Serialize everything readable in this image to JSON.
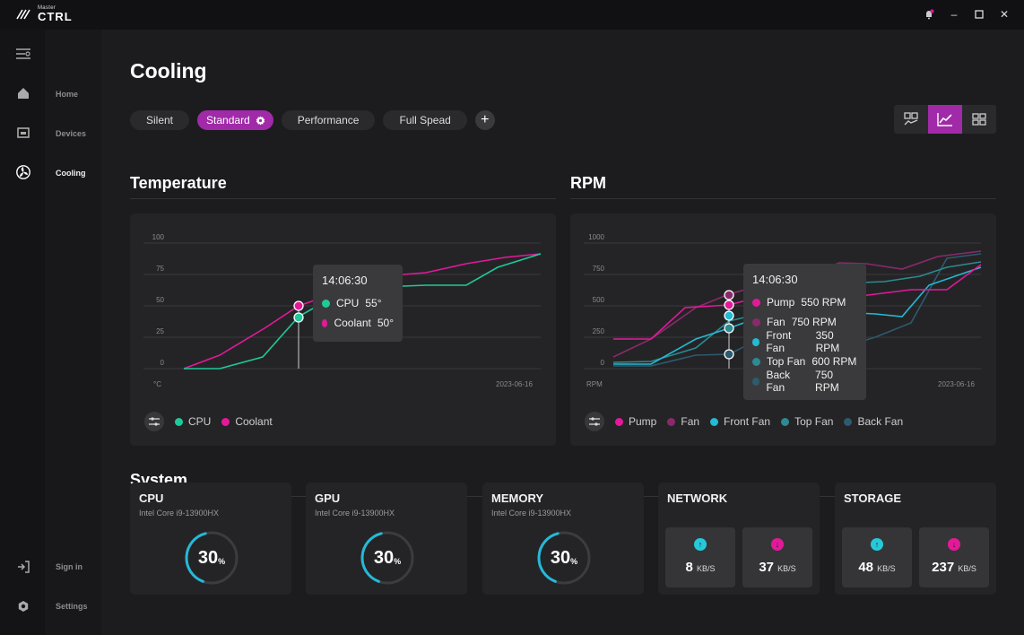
{
  "app": {
    "logo_small": "Master",
    "logo_big": "CTRL"
  },
  "nav": {
    "home": "Home",
    "devices": "Devices",
    "cooling": "Cooling",
    "signin": "Sign in",
    "settings": "Settings"
  },
  "page": {
    "title": "Cooling"
  },
  "profiles": {
    "silent": "Silent",
    "standard": "Standard",
    "performance": "Performance",
    "full_speed": "Full Spead"
  },
  "temperature": {
    "title": "Temperature",
    "unit": "°C",
    "date": "2023-06-16",
    "ticks": [
      "100",
      "75",
      "50",
      "25",
      "0"
    ],
    "tooltip": {
      "time": "14:06:30",
      "rows": [
        {
          "label": "CPU",
          "value": "55°"
        },
        {
          "label": "Coolant",
          "value": "50°"
        }
      ]
    },
    "legend": [
      "CPU",
      "Coolant"
    ]
  },
  "rpm": {
    "title": "RPM",
    "unit": "RPM",
    "date": "2023-06-16",
    "ticks": [
      "1000",
      "750",
      "500",
      "250",
      "0"
    ],
    "tooltip": {
      "time": "14:06:30",
      "rows": [
        {
          "label": "Pump",
          "value": "550 RPM"
        },
        {
          "label": "Fan",
          "value": "750 RPM"
        },
        {
          "label": "Front Fan",
          "value": "350 RPM"
        },
        {
          "label": "Top Fan",
          "value": "600 RPM"
        },
        {
          "label": "Back Fan",
          "value": "750 RPM"
        }
      ]
    },
    "legend": [
      "Pump",
      "Fan",
      "Front Fan",
      "Top Fan",
      "Back Fan"
    ]
  },
  "colors": {
    "cpu": "#1fc99a",
    "coolant": "#e3199a",
    "pump": "#e3199a",
    "fan": "#8a2a6a",
    "front_fan": "#25b9d2",
    "top_fan": "#2c8a92",
    "back_fan": "#2e5a6e",
    "accent": "#a02aa8"
  },
  "system": {
    "title": "System",
    "cpu": {
      "title": "CPU",
      "sub": "Intel Core i9-13900HX",
      "value": "30",
      "unit": "%",
      "level": 30
    },
    "gpu": {
      "title": "GPU",
      "sub": "Intel Core i9-13900HX",
      "value": "30",
      "unit": "%",
      "level": 30
    },
    "memory": {
      "title": "MEMORY",
      "sub": "Intel Core i9-13900HX",
      "value": "30",
      "unit": "%",
      "level": 30
    },
    "network": {
      "title": "NETWORK",
      "up": "8",
      "down": "37",
      "unit": "KB/S"
    },
    "storage": {
      "title": "STORAGE",
      "up": "48",
      "down": "237",
      "unit": "KB/S"
    }
  }
}
